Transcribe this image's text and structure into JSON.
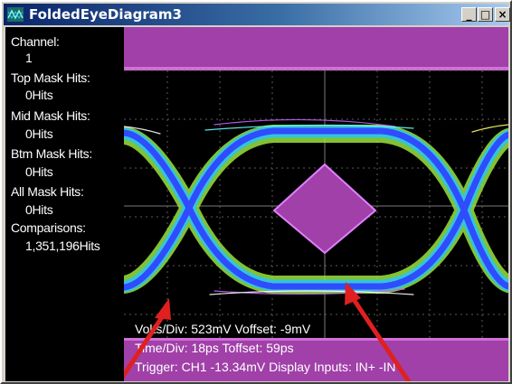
{
  "window": {
    "title": "FoldedEyeDiagram3",
    "min_label": "_",
    "max_label": "□",
    "close_label": "×"
  },
  "stats": [
    {
      "label": "Channel:",
      "value": "1"
    },
    {
      "label": "Top Mask Hits:",
      "value": "0Hits"
    },
    {
      "label": "Mid Mask Hits:",
      "value": "0Hits"
    },
    {
      "label": "Btm Mask Hits:",
      "value": "0Hits"
    },
    {
      "label": "All Mask Hits:",
      "value": "0Hits"
    },
    {
      "label": "Comparisons:",
      "value": "1,351,196Hits"
    }
  ],
  "footer": {
    "volts": "Volts/Div: 523mV Voffset: -9mV",
    "time": "Time/Div: 18ps Toffset: 59ps",
    "trigger": "Trigger: CH1 -13.34mV Display Inputs: IN+ -IN"
  },
  "colors": {
    "mask": "#c850c8",
    "mask_fill": "#a040a8",
    "annotation": "#e02020",
    "trace_blue": "#3a5cff",
    "trace_green": "#7fff40"
  }
}
